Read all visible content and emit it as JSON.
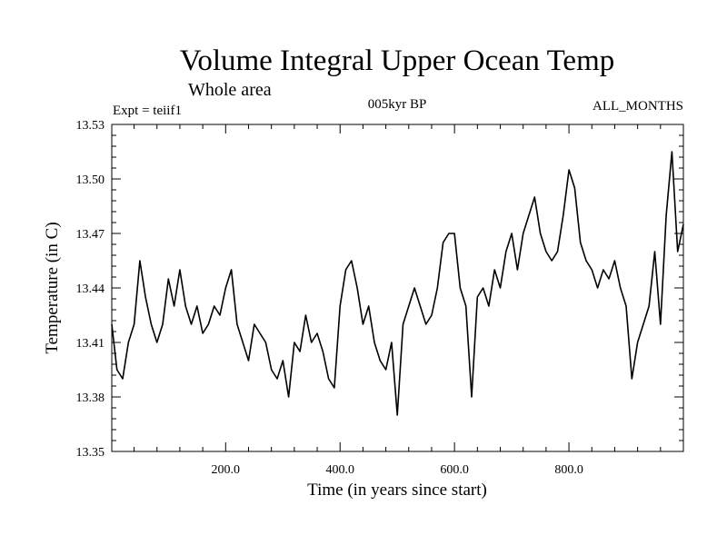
{
  "chart_data": {
    "type": "line",
    "title": "Volume Integral Upper Ocean Temp",
    "subtitle": "Whole area",
    "header_left": "Expt = teiif1",
    "header_center": "005kyr BP",
    "header_right": "ALL_MONTHS",
    "xlabel": "Time (in years since start)",
    "ylabel": "Temperature (in C)",
    "xlim": [
      1,
      1000
    ],
    "ylim": [
      13.35,
      13.53
    ],
    "x_ticks": [
      200,
      400,
      600,
      800
    ],
    "x_tick_labels": [
      "200.0",
      "400.0",
      "600.0",
      "800.0"
    ],
    "y_ticks": [
      13.35,
      13.38,
      13.41,
      13.44,
      13.47,
      13.5,
      13.53
    ],
    "y_tick_labels": [
      "13.35",
      "13.38",
      "13.41",
      "13.44",
      "13.47",
      "13.50",
      "13.53"
    ],
    "grid": false,
    "series": [
      {
        "x": [
          1,
          10,
          20,
          30,
          40,
          50,
          60,
          70,
          80,
          90,
          100,
          110,
          120,
          130,
          140,
          150,
          160,
          170,
          180,
          190,
          200,
          210,
          220,
          230,
          240,
          250,
          260,
          270,
          280,
          290,
          300,
          310,
          320,
          330,
          340,
          350,
          360,
          370,
          380,
          390,
          400,
          410,
          420,
          430,
          440,
          450,
          460,
          470,
          480,
          490,
          500,
          510,
          520,
          530,
          540,
          550,
          560,
          570,
          580,
          590,
          600,
          610,
          620,
          630,
          640,
          650,
          660,
          670,
          680,
          690,
          700,
          710,
          720,
          730,
          740,
          750,
          760,
          770,
          780,
          790,
          800,
          810,
          820,
          830,
          840,
          850,
          860,
          870,
          880,
          890,
          900,
          910,
          920,
          930,
          940,
          950,
          960,
          970,
          980,
          990,
          1000
        ],
        "values": [
          13.42,
          13.395,
          13.39,
          13.41,
          13.42,
          13.455,
          13.435,
          13.42,
          13.41,
          13.42,
          13.445,
          13.43,
          13.45,
          13.43,
          13.42,
          13.43,
          13.415,
          13.42,
          13.43,
          13.425,
          13.44,
          13.45,
          13.42,
          13.41,
          13.4,
          13.42,
          13.415,
          13.41,
          13.395,
          13.39,
          13.4,
          13.38,
          13.41,
          13.405,
          13.425,
          13.41,
          13.415,
          13.405,
          13.39,
          13.385,
          13.43,
          13.45,
          13.455,
          13.44,
          13.42,
          13.43,
          13.41,
          13.4,
          13.395,
          13.41,
          13.37,
          13.42,
          13.43,
          13.44,
          13.43,
          13.42,
          13.425,
          13.44,
          13.465,
          13.47,
          13.47,
          13.44,
          13.43,
          13.38,
          13.435,
          13.44,
          13.43,
          13.45,
          13.44,
          13.46,
          13.47,
          13.45,
          13.47,
          13.48,
          13.49,
          13.47,
          13.46,
          13.455,
          13.46,
          13.48,
          13.505,
          13.495,
          13.465,
          13.455,
          13.45,
          13.44,
          13.45,
          13.445,
          13.455,
          13.44,
          13.43,
          13.39,
          13.41,
          13.42,
          13.43,
          13.46,
          13.42,
          13.48,
          13.515,
          13.46,
          13.475
        ]
      }
    ]
  }
}
